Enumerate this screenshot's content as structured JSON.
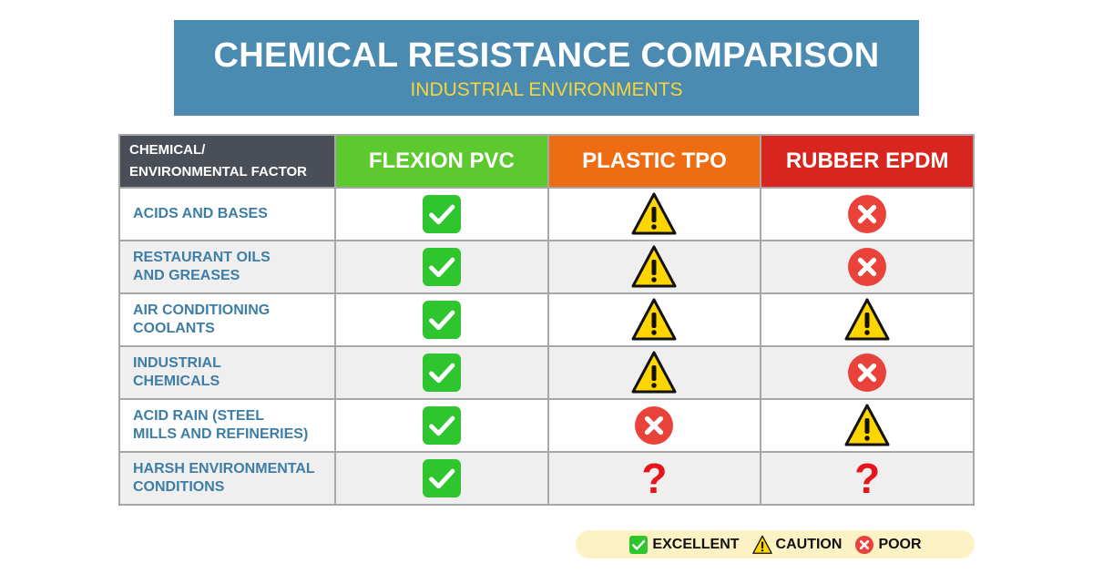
{
  "header": {
    "title": "CHEMICAL RESISTANCE COMPARISON",
    "subtitle": "INDUSTRIAL ENVIRONMENTS"
  },
  "table": {
    "columns": [
      "CHEMICAL/\nENVIRONMENTAL FACTOR",
      "FLEXION PVC",
      "PLASTIC TPO",
      "RUBBER EPDM"
    ],
    "column_colors": [
      "#4a4f57",
      "#5cc92e",
      "#ee6d12",
      "#d8251f"
    ],
    "rows": [
      [
        "ACIDS AND BASES",
        "EXCELLENT",
        "CAUTION",
        "POOR"
      ],
      [
        "RESTAURANT OILS\nAND GREASES",
        "EXCELLENT",
        "CAUTION",
        "POOR"
      ],
      [
        "AIR CONDITIONING\nCOOLANTS",
        "EXCELLENT",
        "CAUTION",
        "CAUTION"
      ],
      [
        "INDUSTRIAL\nCHEMICALS",
        "EXCELLENT",
        "CAUTION",
        "POOR"
      ],
      [
        "ACID RAIN (STEEL\nMILLS AND REFINERIES)",
        "EXCELLENT",
        "POOR",
        "CAUTION"
      ],
      [
        "HARSH ENVIRONMENTAL\nCONDITIONS",
        "EXCELLENT",
        "?",
        "?"
      ]
    ]
  },
  "legend": [
    "EXCELLENT",
    "CAUTION",
    "POOR"
  ]
}
